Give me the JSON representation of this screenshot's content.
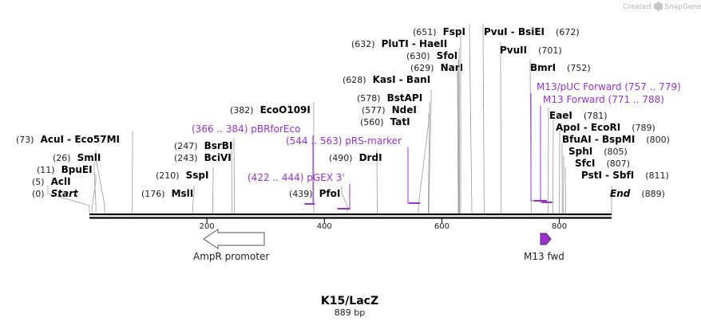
{
  "credit": "Created by SnapGene",
  "title": "K15/LacZ",
  "length_label": "889 bp",
  "length": 889,
  "ticks": [
    200,
    400,
    600,
    800
  ],
  "sites": [
    {
      "pos": "(0)",
      "name": "Start",
      "bp": 0
    },
    {
      "pos": "(5)",
      "name": "AclI",
      "bp": 5
    },
    {
      "pos": "(11)",
      "name": "BpuEI",
      "bp": 11
    },
    {
      "pos": "(26)",
      "name": "SmlI",
      "bp": 26
    },
    {
      "pos": "(73)",
      "name": "AcuI - Eco57MI",
      "bp": 73
    },
    {
      "pos": "(176)",
      "name": "MslI",
      "bp": 176
    },
    {
      "pos": "(210)",
      "name": "SspI",
      "bp": 210
    },
    {
      "pos": "(243)",
      "name": "BciVI",
      "bp": 243
    },
    {
      "pos": "(247)",
      "name": "BsrBI",
      "bp": 247
    },
    {
      "pos": "(382)",
      "name": "EcoO109I",
      "bp": 382
    },
    {
      "pos": "(439)",
      "name": "PfoI",
      "bp": 439
    },
    {
      "pos": "(490)",
      "name": "DrdI",
      "bp": 490
    },
    {
      "pos": "(560)",
      "name": "TatI",
      "bp": 560
    },
    {
      "pos": "(577)",
      "name": "NdeI",
      "bp": 577
    },
    {
      "pos": "(578)",
      "name": "BstAPI",
      "bp": 578
    },
    {
      "pos": "(628)",
      "name": "KasI - BanI",
      "bp": 628
    },
    {
      "pos": "(629)",
      "name": "NarI",
      "bp": 629
    },
    {
      "pos": "(630)",
      "name": "SfoI",
      "bp": 630
    },
    {
      "pos": "(632)",
      "name": "PluTI - HaeII",
      "bp": 632
    },
    {
      "pos": "(651)",
      "name": "FspI",
      "bp": 651
    },
    {
      "pos": "(672)",
      "name": "PvuI - BsiEI",
      "bp": 672
    },
    {
      "pos": "(701)",
      "name": "PvuII",
      "bp": 701
    },
    {
      "pos": "(752)",
      "name": "BmrI",
      "bp": 752
    },
    {
      "pos": "(781)",
      "name": "EaeI",
      "bp": 781
    },
    {
      "pos": "(789)",
      "name": "ApoI - EcoRI",
      "bp": 789
    },
    {
      "pos": "(800)",
      "name": "BfuAI - BspMI",
      "bp": 800
    },
    {
      "pos": "(805)",
      "name": "SphI",
      "bp": 805
    },
    {
      "pos": "(807)",
      "name": "SfcI",
      "bp": 807
    },
    {
      "pos": "(811)",
      "name": "PstI - SbfI",
      "bp": 811
    },
    {
      "pos": "(889)",
      "name": "End",
      "bp": 889
    }
  ],
  "primers": [
    {
      "label": "(366 .. 384)  pBRforEco",
      "start": 366,
      "end": 384
    },
    {
      "label": "(422 .. 444)  pGEX 3'",
      "start": 422,
      "end": 444
    },
    {
      "label": "(544 .. 563)  pRS-marker",
      "start": 544,
      "end": 563
    },
    {
      "label": "M13/pUC Forward   (757 .. 779)",
      "start": 757,
      "end": 779
    },
    {
      "label": "M13 Forward   (771 .. 788)",
      "start": 771,
      "end": 788
    }
  ],
  "features": [
    {
      "label": "AmpR promoter",
      "direction": "reverse",
      "color": "#ffffff"
    },
    {
      "label": "M13 fwd",
      "direction": "forward",
      "color": "#9933cc"
    }
  ],
  "colors": {
    "primer": "#9933cc",
    "backbone": "#000000"
  }
}
